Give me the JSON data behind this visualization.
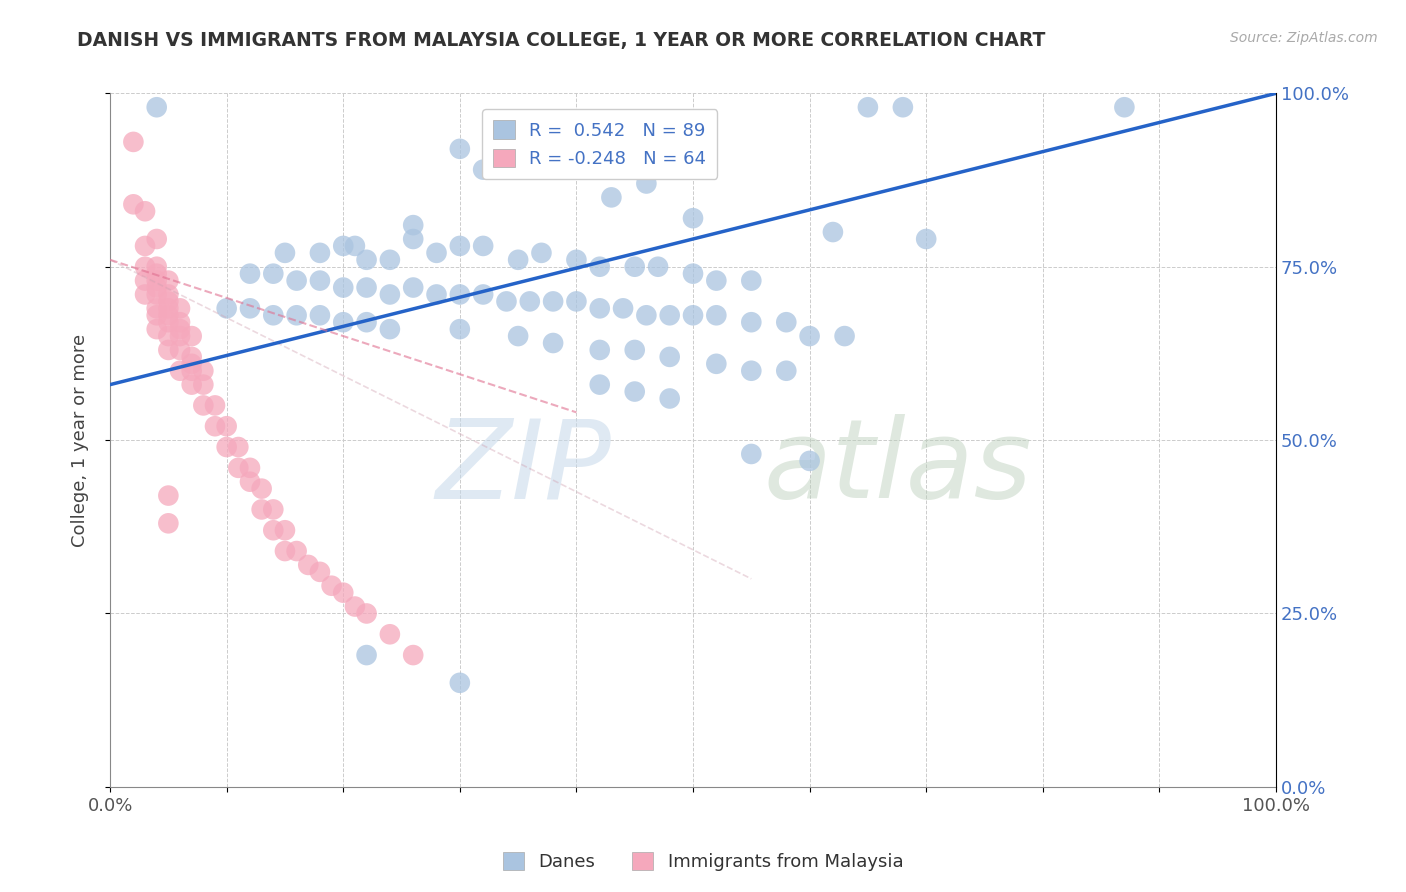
{
  "title": "DANISH VS IMMIGRANTS FROM MALAYSIA COLLEGE, 1 YEAR OR MORE CORRELATION CHART",
  "source": "Source: ZipAtlas.com",
  "ylabel": "College, 1 year or more",
  "xlim": [
    0.0,
    1.0
  ],
  "ylim": [
    0.0,
    1.0
  ],
  "xtick_vals": [
    0.0,
    0.1,
    0.2,
    0.3,
    0.4,
    0.5,
    0.6,
    0.7,
    0.8,
    0.9,
    1.0
  ],
  "xtick_edge_labels": {
    "0.0": "0.0%",
    "1.0": "100.0%"
  },
  "ytick_vals": [
    0.0,
    0.25,
    0.5,
    0.75,
    1.0
  ],
  "ytick_labels_right": [
    "0.0%",
    "25.0%",
    "50.0%",
    "75.0%",
    "100.0%"
  ],
  "blue_color": "#aac4e0",
  "pink_color": "#f5a8bc",
  "blue_line_color": "#2563c8",
  "pink_line_color": "#e07090",
  "danes_scatter": [
    [
      0.04,
      0.98
    ],
    [
      0.65,
      0.98
    ],
    [
      0.68,
      0.98
    ],
    [
      0.87,
      0.98
    ],
    [
      0.3,
      0.92
    ],
    [
      0.32,
      0.89
    ],
    [
      0.43,
      0.85
    ],
    [
      0.46,
      0.87
    ],
    [
      0.5,
      0.82
    ],
    [
      0.62,
      0.8
    ],
    [
      0.21,
      0.78
    ],
    [
      0.26,
      0.79
    ],
    [
      0.26,
      0.81
    ],
    [
      0.15,
      0.77
    ],
    [
      0.18,
      0.77
    ],
    [
      0.2,
      0.78
    ],
    [
      0.22,
      0.76
    ],
    [
      0.24,
      0.76
    ],
    [
      0.28,
      0.77
    ],
    [
      0.3,
      0.78
    ],
    [
      0.32,
      0.78
    ],
    [
      0.35,
      0.76
    ],
    [
      0.37,
      0.77
    ],
    [
      0.4,
      0.76
    ],
    [
      0.42,
      0.75
    ],
    [
      0.45,
      0.75
    ],
    [
      0.47,
      0.75
    ],
    [
      0.5,
      0.74
    ],
    [
      0.52,
      0.73
    ],
    [
      0.55,
      0.73
    ],
    [
      0.7,
      0.79
    ],
    [
      0.12,
      0.74
    ],
    [
      0.14,
      0.74
    ],
    [
      0.16,
      0.73
    ],
    [
      0.18,
      0.73
    ],
    [
      0.2,
      0.72
    ],
    [
      0.22,
      0.72
    ],
    [
      0.24,
      0.71
    ],
    [
      0.26,
      0.72
    ],
    [
      0.28,
      0.71
    ],
    [
      0.3,
      0.71
    ],
    [
      0.32,
      0.71
    ],
    [
      0.34,
      0.7
    ],
    [
      0.36,
      0.7
    ],
    [
      0.38,
      0.7
    ],
    [
      0.4,
      0.7
    ],
    [
      0.42,
      0.69
    ],
    [
      0.44,
      0.69
    ],
    [
      0.46,
      0.68
    ],
    [
      0.48,
      0.68
    ],
    [
      0.5,
      0.68
    ],
    [
      0.52,
      0.68
    ],
    [
      0.55,
      0.67
    ],
    [
      0.58,
      0.67
    ],
    [
      0.6,
      0.65
    ],
    [
      0.63,
      0.65
    ],
    [
      0.1,
      0.69
    ],
    [
      0.12,
      0.69
    ],
    [
      0.14,
      0.68
    ],
    [
      0.16,
      0.68
    ],
    [
      0.18,
      0.68
    ],
    [
      0.2,
      0.67
    ],
    [
      0.22,
      0.67
    ],
    [
      0.24,
      0.66
    ],
    [
      0.3,
      0.66
    ],
    [
      0.35,
      0.65
    ],
    [
      0.38,
      0.64
    ],
    [
      0.42,
      0.63
    ],
    [
      0.45,
      0.63
    ],
    [
      0.48,
      0.62
    ],
    [
      0.52,
      0.61
    ],
    [
      0.55,
      0.6
    ],
    [
      0.58,
      0.6
    ],
    [
      0.42,
      0.58
    ],
    [
      0.45,
      0.57
    ],
    [
      0.48,
      0.56
    ],
    [
      0.55,
      0.48
    ],
    [
      0.6,
      0.47
    ],
    [
      0.22,
      0.19
    ],
    [
      0.3,
      0.15
    ]
  ],
  "malaysia_scatter": [
    [
      0.02,
      0.93
    ],
    [
      0.02,
      0.84
    ],
    [
      0.03,
      0.83
    ],
    [
      0.03,
      0.78
    ],
    [
      0.04,
      0.79
    ],
    [
      0.03,
      0.75
    ],
    [
      0.04,
      0.75
    ],
    [
      0.04,
      0.74
    ],
    [
      0.03,
      0.73
    ],
    [
      0.04,
      0.73
    ],
    [
      0.04,
      0.72
    ],
    [
      0.05,
      0.73
    ],
    [
      0.03,
      0.71
    ],
    [
      0.04,
      0.71
    ],
    [
      0.05,
      0.71
    ],
    [
      0.05,
      0.7
    ],
    [
      0.04,
      0.69
    ],
    [
      0.05,
      0.69
    ],
    [
      0.05,
      0.68
    ],
    [
      0.06,
      0.69
    ],
    [
      0.04,
      0.68
    ],
    [
      0.05,
      0.67
    ],
    [
      0.06,
      0.67
    ],
    [
      0.06,
      0.66
    ],
    [
      0.04,
      0.66
    ],
    [
      0.05,
      0.65
    ],
    [
      0.06,
      0.65
    ],
    [
      0.07,
      0.65
    ],
    [
      0.05,
      0.63
    ],
    [
      0.06,
      0.63
    ],
    [
      0.07,
      0.62
    ],
    [
      0.07,
      0.61
    ],
    [
      0.06,
      0.6
    ],
    [
      0.07,
      0.6
    ],
    [
      0.08,
      0.6
    ],
    [
      0.07,
      0.58
    ],
    [
      0.08,
      0.58
    ],
    [
      0.08,
      0.55
    ],
    [
      0.09,
      0.55
    ],
    [
      0.09,
      0.52
    ],
    [
      0.1,
      0.52
    ],
    [
      0.1,
      0.49
    ],
    [
      0.11,
      0.49
    ],
    [
      0.11,
      0.46
    ],
    [
      0.12,
      0.46
    ],
    [
      0.12,
      0.44
    ],
    [
      0.13,
      0.43
    ],
    [
      0.13,
      0.4
    ],
    [
      0.14,
      0.4
    ],
    [
      0.14,
      0.37
    ],
    [
      0.15,
      0.37
    ],
    [
      0.15,
      0.34
    ],
    [
      0.16,
      0.34
    ],
    [
      0.17,
      0.32
    ],
    [
      0.18,
      0.31
    ],
    [
      0.19,
      0.29
    ],
    [
      0.2,
      0.28
    ],
    [
      0.21,
      0.26
    ],
    [
      0.22,
      0.25
    ],
    [
      0.24,
      0.22
    ],
    [
      0.26,
      0.19
    ],
    [
      0.05,
      0.42
    ],
    [
      0.05,
      0.38
    ]
  ],
  "blue_line": {
    "x0": 0.0,
    "y0": 0.58,
    "x1": 1.0,
    "y1": 1.0
  },
  "pink_line": {
    "x0": 0.0,
    "y0": 0.76,
    "x1": 0.4,
    "y1": 0.54
  }
}
